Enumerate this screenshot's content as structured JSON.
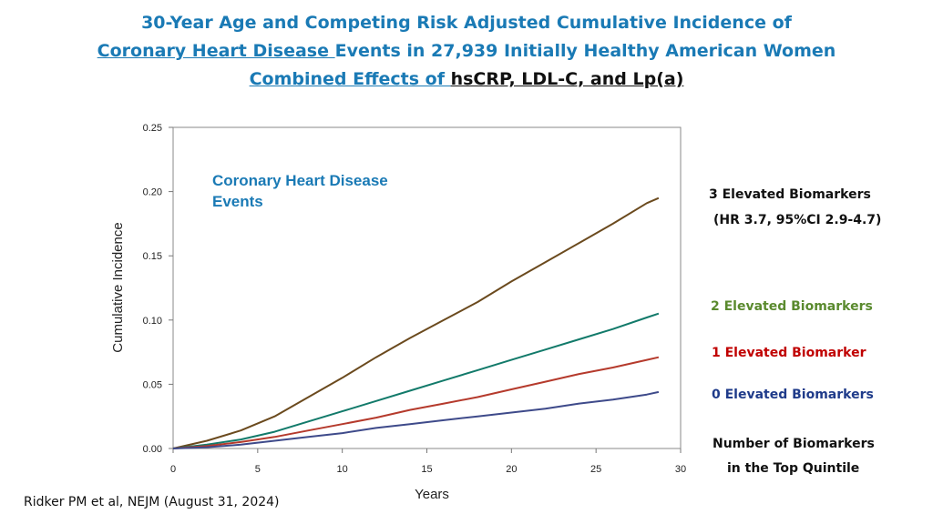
{
  "title": {
    "line1": "30-Year Age and Competing Risk Adjusted Cumulative Incidence of",
    "line2_link": "Coronary Heart Disease ",
    "line2_rest": "Events in 27,939 Initially Healthy American Women",
    "line3_link": "Combined Effects of ",
    "line3_rest": "hsCRP, LDL-C, and Lp(a)"
  },
  "colors": {
    "title_blue": "#1a7ab5",
    "series3": "#6b4a1e",
    "series2": "#127a6a",
    "series1": "#b53a2c",
    "series0": "#3e4a8a",
    "legend3": "#111111",
    "legend2": "#5a8a2e",
    "legend1": "#c00000",
    "legend0": "#1f3b8a",
    "annotation": "#1a7ab5"
  },
  "labels": {
    "three": "3 Elevated Biomarkers",
    "three_hr": "(HR 3.7, 95%CI 2.9-4.7)",
    "two": "2 Elevated Biomarkers",
    "one": "1 Elevated Biomarker",
    "zero": "0 Elevated Biomarkers",
    "note1": "Number of Biomarkers",
    "note2": "in the Top Quintile"
  },
  "citation": "Ridker PM et al, NEJM (August 31, 2024)",
  "chart_data": {
    "type": "line",
    "annotation": [
      "Coronary Heart Disease",
      "Events"
    ],
    "xlabel": "Years",
    "ylabel": "Cumulative Incidence",
    "xlim": [
      0,
      30
    ],
    "ylim": [
      0,
      0.25
    ],
    "xticks": [
      "0",
      "5",
      "10",
      "15",
      "20",
      "25",
      "30"
    ],
    "yticks": [
      "0.00",
      "0.05",
      "0.10",
      "0.15",
      "0.20",
      "0.25"
    ],
    "x": [
      0,
      2,
      4,
      6,
      8,
      10,
      12,
      14,
      16,
      18,
      20,
      22,
      24,
      26,
      28,
      28.7
    ],
    "series": [
      {
        "name": "3 Elevated Biomarkers",
        "values": [
          0,
          0.006,
          0.014,
          0.025,
          0.04,
          0.055,
          0.071,
          0.086,
          0.1,
          0.114,
          0.13,
          0.145,
          0.16,
          0.175,
          0.191,
          0.195
        ]
      },
      {
        "name": "2 Elevated Biomarkers",
        "values": [
          0,
          0.003,
          0.007,
          0.013,
          0.021,
          0.029,
          0.037,
          0.045,
          0.053,
          0.061,
          0.069,
          0.077,
          0.085,
          0.093,
          0.102,
          0.105
        ]
      },
      {
        "name": "1 Elevated Biomarker",
        "values": [
          0,
          0.002,
          0.005,
          0.009,
          0.014,
          0.019,
          0.024,
          0.03,
          0.035,
          0.04,
          0.046,
          0.052,
          0.058,
          0.063,
          0.069,
          0.071
        ]
      },
      {
        "name": "0 Elevated Biomarkers",
        "values": [
          0,
          0.001,
          0.003,
          0.006,
          0.009,
          0.012,
          0.016,
          0.019,
          0.022,
          0.025,
          0.028,
          0.031,
          0.035,
          0.038,
          0.042,
          0.044
        ]
      }
    ]
  }
}
